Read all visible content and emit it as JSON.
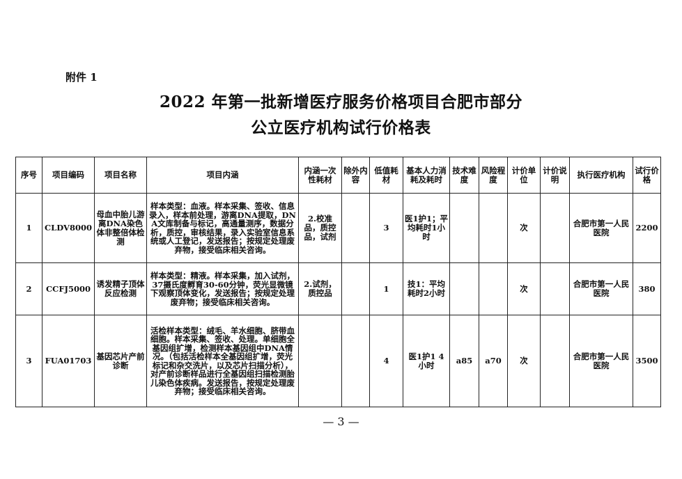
{
  "attachment_label": "附件 1",
  "title_line1": "2022 年第一批新增医疗服务价格项目合肥市部分",
  "title_line2": "公立医疗机构试行价格表",
  "table": {
    "headers": [
      "序号",
      "项目编码",
      "项目名称",
      "项目内涵",
      "内涵一次性耗材",
      "除外内容",
      "低值耗材",
      "基本人力消耗及耗时",
      "技术难度",
      "风险程度",
      "计价单位",
      "计价说明",
      "执行医疗机构",
      "试行价格"
    ],
    "rows": [
      [
        "1",
        "CLDV8000",
        "母血中胎儿游离DNA染色体非整倍体检测",
        "样本类型：血液。样本采集、签收、信息录入，样本前处理，游离DNA提取，DNA文库制备与标记，高通量测序，数据分析，质控，审核结果，录入实验室信息系统或人工登记，发送报告；按规定处理废弃物，接受临床相关咨询。",
        "2.校准品，质控品，试剂",
        "",
        "3",
        "医1护1；平均耗时1小时",
        "",
        "",
        "次",
        "",
        "合肥市第一人民医院",
        "2200"
      ],
      [
        "2",
        "CCFJ5000",
        "诱发精子顶体反应检测",
        "样本类型：精液。样本采集，加入试剂， 37摄氏度孵育30-60分钟，荧光显微镜下观察顶体变化，发送报告；按规定处理废弃物；接受临床相关咨询。",
        "2.试剂，质控品",
        "",
        "1",
        "技1：平均耗时2小时",
        "",
        "",
        "次",
        "",
        "合肥市第一人民医院",
        "380"
      ],
      [
        "3",
        "FUA01703",
        "基因芯片产前诊断",
        "活检样本类型：绒毛、羊水细胞、脐带血细胞。样本采集、签收、处理。单细胞全基因组扩增，检测样本基因组中DNA情况。（包括活检样本全基因组扩增，荧光标记和杂交洗片，以及芯片扫描分析），对产前诊断样品进行全基因组扫描检测胎儿染色体疾病。发送报告，按规定处理废弃物；接受临床相关咨询。",
        "",
        "",
        "4",
        "医1护1 4小时",
        "a85",
        "a70",
        "次",
        "",
        "合肥市第一人民医院",
        "3500"
      ]
    ]
  },
  "page_number": "— 3 —"
}
